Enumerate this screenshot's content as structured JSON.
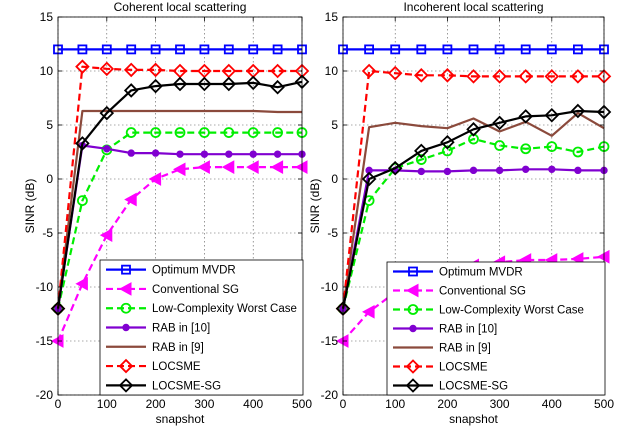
{
  "chart_data": [
    {
      "type": "line",
      "title": "Coherent local scattering",
      "xlabel": "snapshot",
      "ylabel": "SINR (dB)",
      "xlim": [
        0,
        500
      ],
      "ylim": [
        -20,
        15
      ],
      "xticks": [
        0,
        100,
        200,
        300,
        400,
        500
      ],
      "yticks": [
        -20,
        -15,
        -10,
        -5,
        0,
        5,
        10,
        15
      ],
      "grid": true,
      "legend_position": "bottom-right",
      "x": [
        0,
        50,
        100,
        150,
        200,
        250,
        300,
        350,
        400,
        450,
        500
      ],
      "series": [
        {
          "name": "Optimum MVDR",
          "color": "#0000ff",
          "dash": "solid",
          "marker": "square",
          "values": [
            12,
            12,
            12,
            12,
            12,
            12,
            12,
            12,
            12,
            12,
            12
          ]
        },
        {
          "name": "Conventional SG",
          "color": "#ff00ff",
          "dash": "dashed",
          "marker": "triangle-left",
          "values": [
            -15,
            -9.7,
            -5.2,
            -1.9,
            0,
            0.9,
            1.1,
            1.1,
            1.1,
            1.1,
            1.1
          ]
        },
        {
          "name": "Low-Complexity Worst Case",
          "color": "#00ee00",
          "dash": "dashed",
          "marker": "circle",
          "values": [
            -12,
            -2,
            2.7,
            4.3,
            4.3,
            4.3,
            4.3,
            4.3,
            4.3,
            4.3,
            4.3
          ]
        },
        {
          "name": "RAB in [10]",
          "color": "#8000d0",
          "dash": "solid",
          "marker": "dot",
          "values": [
            -12,
            3.1,
            2.8,
            2.4,
            2.4,
            2.3,
            2.3,
            2.3,
            2.3,
            2.3,
            2.3
          ]
        },
        {
          "name": "RAB in [9]",
          "color": "#8b4a3c",
          "dash": "solid",
          "marker": "none",
          "values": [
            -12,
            6.3,
            6.3,
            6.3,
            6.3,
            6.3,
            6.3,
            6.3,
            6.3,
            6.2,
            6.2
          ]
        },
        {
          "name": "LOCSME",
          "color": "#ff0000",
          "dash": "dashed",
          "marker": "diamond",
          "values": [
            -12,
            10.4,
            10.2,
            10.1,
            10.1,
            10,
            10,
            10,
            10,
            10,
            10
          ]
        },
        {
          "name": "LOCSME-SG",
          "color": "#000000",
          "dash": "solid",
          "marker": "diamond",
          "values": [
            -12,
            3.3,
            6.1,
            8.2,
            8.6,
            8.8,
            8.8,
            8.8,
            8.9,
            8.5,
            9
          ]
        }
      ]
    },
    {
      "type": "line",
      "title": "Incoherent local scattering",
      "xlabel": "snapshot",
      "ylabel": "SINR (dB)",
      "xlim": [
        0,
        500
      ],
      "ylim": [
        -20,
        15
      ],
      "xticks": [
        0,
        100,
        200,
        300,
        400,
        500
      ],
      "yticks": [
        -20,
        -15,
        -10,
        -5,
        0,
        5,
        10,
        15
      ],
      "grid": true,
      "legend_position": "bottom-right",
      "x": [
        0,
        50,
        100,
        150,
        200,
        250,
        300,
        350,
        400,
        450,
        500
      ],
      "series": [
        {
          "name": "Optimum MVDR",
          "color": "#0000ff",
          "dash": "solid",
          "marker": "square",
          "values": [
            12,
            12,
            12,
            12,
            12,
            12,
            12,
            12,
            12,
            12,
            12
          ]
        },
        {
          "name": "Conventional SG",
          "color": "#ff00ff",
          "dash": "dashed",
          "marker": "triangle-left",
          "values": [
            -15,
            -12.3,
            -10.5,
            -9.3,
            -8.5,
            -8,
            -7.7,
            -7.5,
            -7.5,
            -7.4,
            -7.2
          ]
        },
        {
          "name": "Low-Complexity Worst Case",
          "color": "#00ee00",
          "dash": "dashed",
          "marker": "circle",
          "values": [
            -12,
            -2,
            1,
            1.8,
            2.6,
            3.7,
            3.1,
            2.8,
            3,
            2.5,
            3
          ]
        },
        {
          "name": "RAB in [10]",
          "color": "#8000d0",
          "dash": "solid",
          "marker": "dot",
          "values": [
            -12,
            0.8,
            0.8,
            0.7,
            0.7,
            0.8,
            0.8,
            0.9,
            0.9,
            0.8,
            0.8
          ]
        },
        {
          "name": "RAB in [9]",
          "color": "#8b4a3c",
          "dash": "solid",
          "marker": "none",
          "values": [
            -12,
            4.8,
            5.2,
            4.9,
            4.7,
            5.6,
            4.4,
            5.3,
            4,
            6.1,
            4.7
          ]
        },
        {
          "name": "LOCSME",
          "color": "#ff0000",
          "dash": "dashed",
          "marker": "diamond",
          "values": [
            -12,
            10,
            9.8,
            9.6,
            9.6,
            9.5,
            9.5,
            9.5,
            9.5,
            9.5,
            9.5
          ]
        },
        {
          "name": "LOCSME-SG",
          "color": "#000000",
          "dash": "solid",
          "marker": "diamond",
          "values": [
            -12,
            0,
            1,
            2.6,
            3.4,
            4.6,
            5.2,
            5.8,
            5.9,
            6.3,
            6.2
          ]
        }
      ]
    }
  ]
}
